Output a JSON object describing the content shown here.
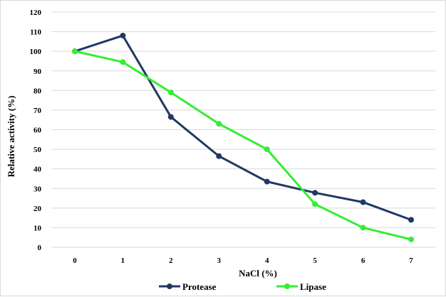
{
  "chart_data": {
    "type": "line",
    "xlabel": "NaCl (%)",
    "ylabel": "Relative activity (%)",
    "x": [
      0,
      1,
      2,
      3,
      4,
      5,
      6,
      7
    ],
    "xticks": [
      "0",
      "1",
      "2",
      "3",
      "4",
      "5",
      "6",
      "7"
    ],
    "ylim": [
      0,
      120
    ],
    "yticks": [
      "0",
      "10",
      "20",
      "30",
      "40",
      "50",
      "60",
      "70",
      "80",
      "90",
      "100",
      "110",
      "120"
    ],
    "grid": "horizontal",
    "legend": "bottom",
    "series": [
      {
        "name": "Protease",
        "color": "#1f3864",
        "values": [
          100,
          108,
          66.5,
          46.5,
          33.5,
          27.8,
          23,
          14
        ]
      },
      {
        "name": "Lipase",
        "color": "#33ee33",
        "values": [
          100,
          94.5,
          79,
          63,
          50,
          22,
          10,
          4
        ]
      }
    ]
  }
}
